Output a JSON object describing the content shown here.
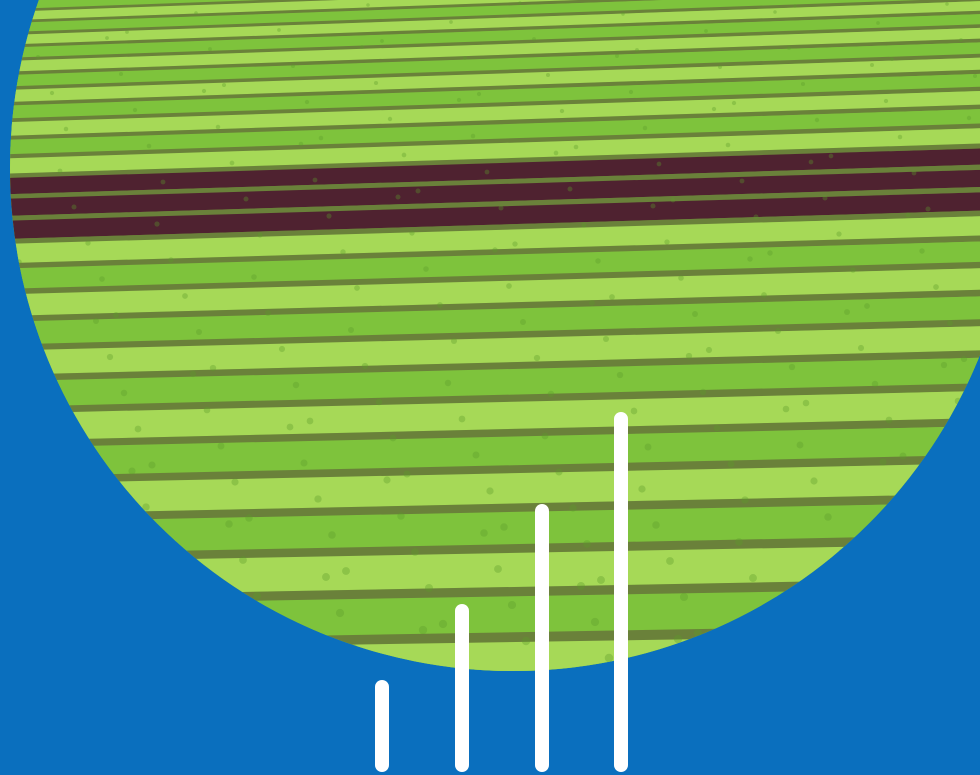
{
  "scene": {
    "subject": "aerial-lettuce-field",
    "colors": {
      "background": "#0a6fbe",
      "green_row": "#7ec33c",
      "green_row_light": "#a6d957",
      "green_row_dark": "#5b9b2a",
      "red_row": "#4f2230",
      "soil": "#5a4a38",
      "bars": "#ffffff"
    }
  },
  "bars_graphic": {
    "levels": [
      0.23,
      0.42,
      0.67,
      0.9
    ]
  }
}
